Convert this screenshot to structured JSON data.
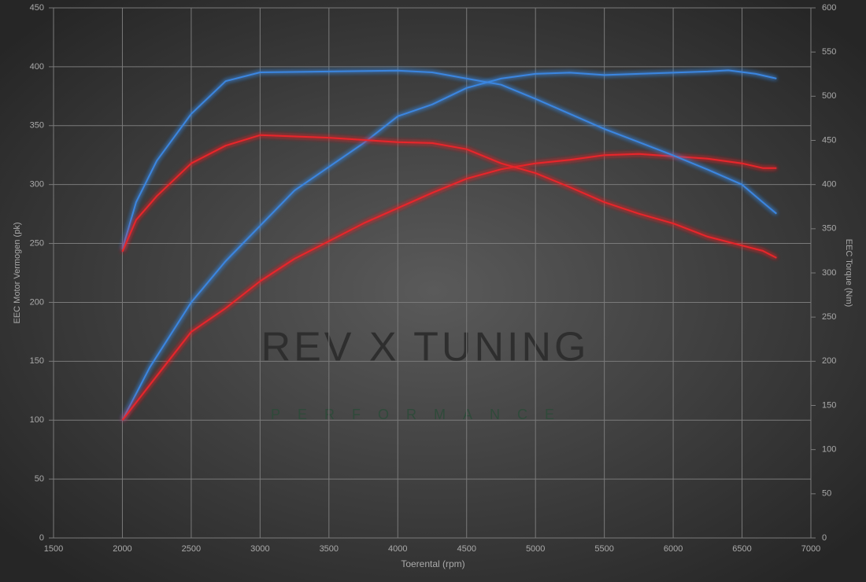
{
  "chart_data": {
    "type": "line",
    "xlabel": "Toerental (rpm)",
    "ylabel": "EEC Motor Vermogen (pk)",
    "y2label": "EEC Torque (Nm)",
    "watermark": "REV X TUNING",
    "watermark_sub": "PERFORMANCE",
    "xlim": [
      1500,
      7000
    ],
    "xticks": [
      1500,
      2000,
      2500,
      3000,
      3500,
      4000,
      4500,
      5000,
      5500,
      6000,
      6500,
      7000
    ],
    "ylim": [
      0,
      450
    ],
    "yticks": [
      0,
      50,
      100,
      150,
      200,
      250,
      300,
      350,
      400,
      450
    ],
    "y2lim": [
      0,
      600
    ],
    "y2ticks": [
      0,
      50,
      100,
      150,
      200,
      250,
      300,
      350,
      400,
      450,
      500,
      550,
      600
    ],
    "grid": true,
    "series": [
      {
        "color": "#3a86e0",
        "x": [
          2000,
          2200,
          2500,
          2750,
          3000,
          3250,
          3500,
          3750,
          4000,
          4250,
          4500,
          4750,
          5000,
          5250,
          5500,
          5750,
          6000,
          6250,
          6400,
          6600,
          6750
        ],
        "values": [
          100,
          145,
          200,
          235,
          265,
          295,
          315,
          335,
          358,
          368,
          382,
          390,
          394,
          395,
          393,
          394,
          395,
          396,
          397,
          394,
          390
        ]
      },
      {
        "color": "#e8262c",
        "x": [
          2000,
          2200,
          2500,
          2750,
          3000,
          3250,
          3500,
          3750,
          4000,
          4250,
          4500,
          4750,
          5000,
          5250,
          5500,
          5750,
          6000,
          6250,
          6500,
          6650,
          6750
        ],
        "values": [
          100,
          130,
          175,
          195,
          218,
          237,
          252,
          267,
          280,
          293,
          305,
          313,
          318,
          321,
          325,
          326,
          324,
          322,
          318,
          314,
          314
        ]
      },
      {
        "color": "#3a86e0",
        "axis": "y2",
        "x": [
          2000,
          2100,
          2250,
          2500,
          2750,
          3000,
          3500,
          4000,
          4250,
          4500,
          4750,
          5000,
          5250,
          5500,
          5750,
          6000,
          6250,
          6500,
          6650,
          6750
        ],
        "values": [
          327,
          380,
          427,
          480,
          517,
          527,
          528,
          529,
          527,
          520,
          513,
          497,
          480,
          463,
          448,
          433,
          417,
          400,
          380,
          367
        ]
      },
      {
        "color": "#e8262c",
        "axis": "y2",
        "x": [
          2000,
          2100,
          2250,
          2500,
          2750,
          3000,
          3500,
          4000,
          4250,
          4500,
          4750,
          5000,
          5250,
          5500,
          5750,
          6000,
          6250,
          6500,
          6650,
          6750
        ],
        "values": [
          324,
          360,
          387,
          424,
          444,
          456,
          453,
          448,
          447,
          440,
          424,
          413,
          397,
          380,
          367,
          356,
          341,
          331,
          325,
          317
        ]
      }
    ]
  }
}
